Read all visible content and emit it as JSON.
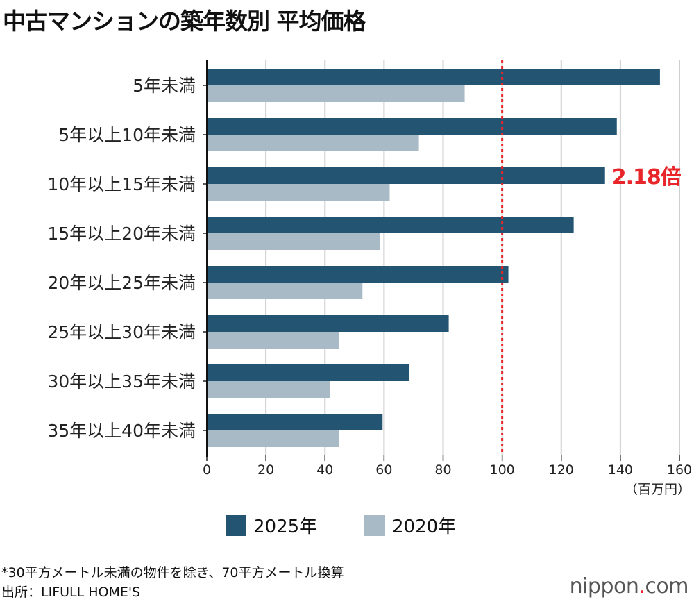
{
  "title": "中古マンションの築年数別 平均価格",
  "chart_data": {
    "type": "bar",
    "orientation": "horizontal",
    "title": "中古マンションの築年数別 平均価格",
    "categories": [
      "5年未満",
      "5年以上10年未満",
      "10年以上15年未満",
      "15年以上20年未満",
      "20年以上25年未満",
      "25年以上30年未満",
      "30年以上35年未満",
      "35年以上40年未満"
    ],
    "series": [
      {
        "name": "2025年",
        "color": "#235573",
        "values": [
          153.4,
          138.8,
          134.8,
          124.2,
          102.1,
          81.9,
          68.5,
          59.5
        ]
      },
      {
        "name": "2020年",
        "color": "#a8bac6",
        "values": [
          87.3,
          71.8,
          61.9,
          58.6,
          52.7,
          44.7,
          41.6,
          44.7
        ]
      }
    ],
    "xlim": [
      0,
      160
    ],
    "xticks": [
      0,
      20,
      40,
      60,
      80,
      100,
      120,
      140,
      160
    ],
    "xlabel": "（百万円）",
    "grid": true,
    "reference_line": {
      "value": 100,
      "color": "#e8262a",
      "style": "dotted"
    },
    "annotation": {
      "text": "2.18倍",
      "category_index": 2,
      "color": "#e8262a"
    },
    "legend_position": "bottom"
  },
  "footnote": "*30平方メートル未満の物件を除き、70平方メートル換算",
  "source": "出所：LIFULL HOME'S",
  "logo": {
    "main": "nippon",
    "dot": ".",
    "suffix": "com"
  }
}
